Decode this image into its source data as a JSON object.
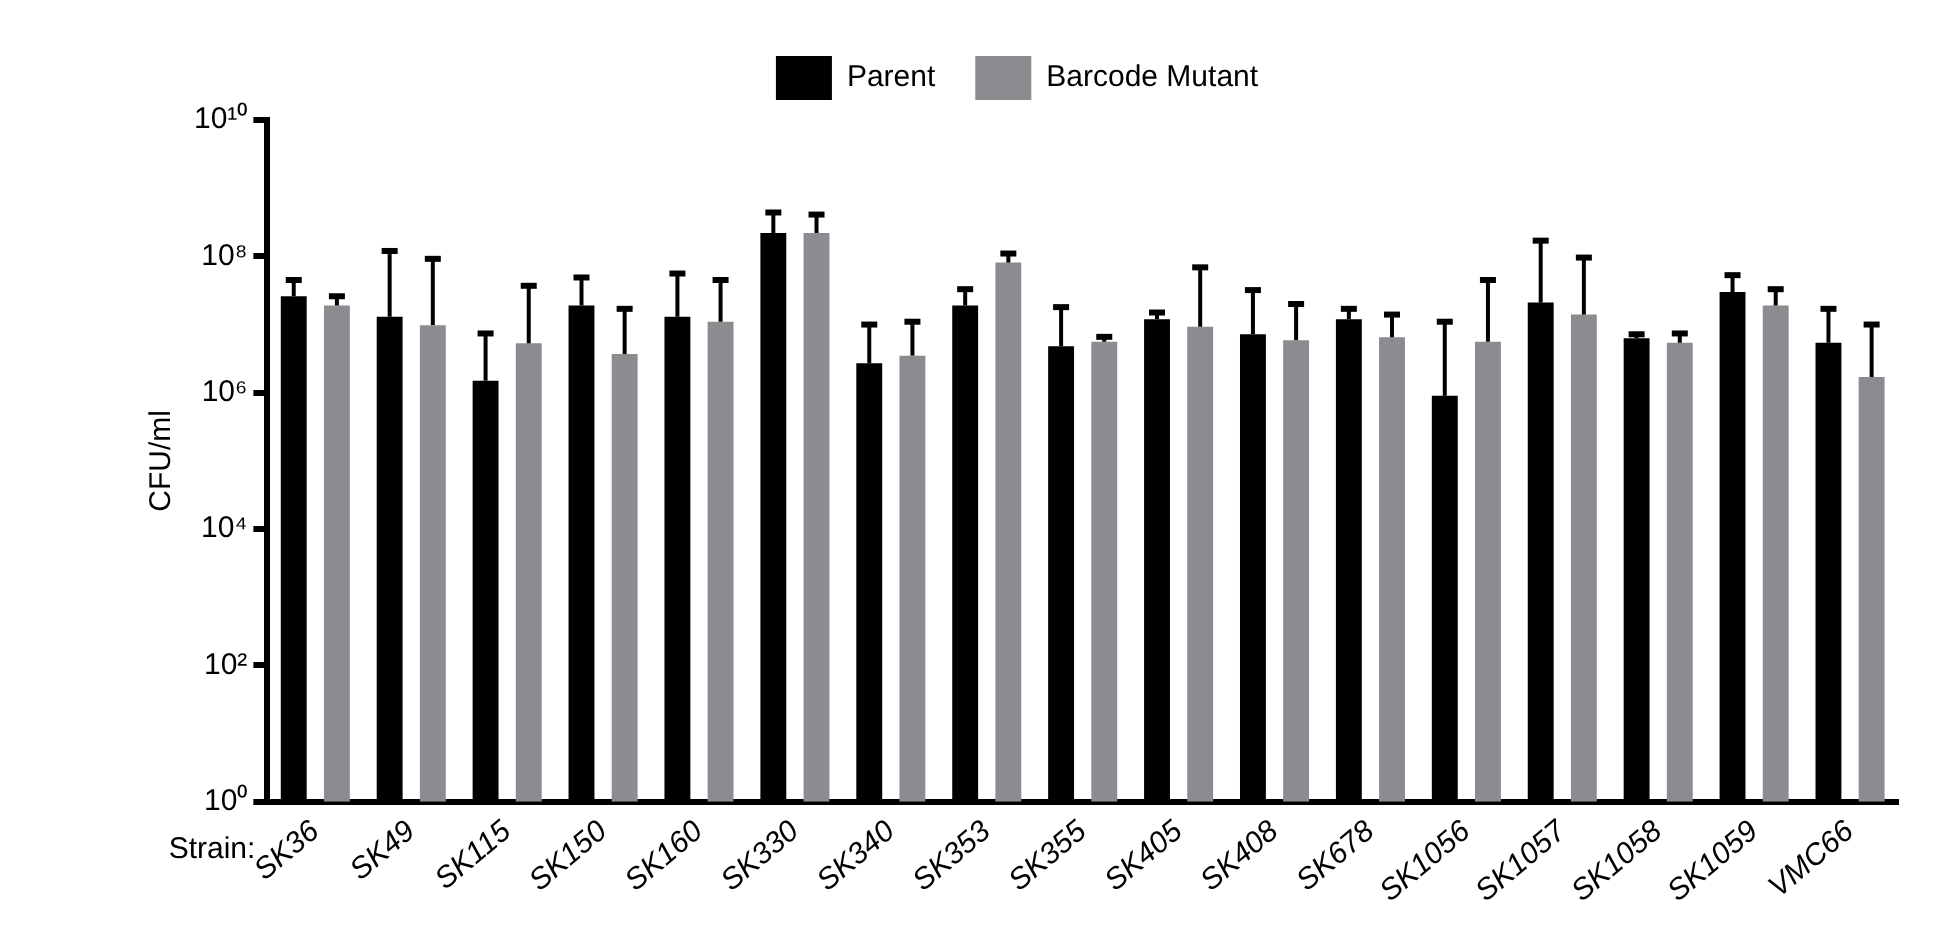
{
  "chart_data": {
    "type": "bar",
    "ylabel": "CFU/ml",
    "xlabel": "Strain:",
    "categories": [
      "SK36",
      "SK49",
      "SK115",
      "SK150",
      "SK160",
      "SK330",
      "SK340",
      "SK353",
      "SK355",
      "SK405",
      "SK408",
      "SK678",
      "SK1056",
      "SK1057",
      "SK1058",
      "SK1059",
      "VMC66"
    ],
    "series": [
      {
        "name": "Parent",
        "color": "#000000",
        "values": [
          26000000.0,
          13000000.0,
          1500000.0,
          19000000.0,
          13000000.0,
          220000000.0,
          2700000.0,
          19000000.0,
          4800000.0,
          12000000.0,
          7200000.0,
          12000000.0,
          900000.0,
          21000000.0,
          6300000.0,
          30000000.0,
          5400000.0
        ],
        "errors": [
          [
            26000000.0,
            45000000.0
          ],
          [
            13000000.0,
            120000000.0
          ],
          [
            1500000.0,
            7400000.0
          ],
          [
            19000000.0,
            49000000.0
          ],
          [
            13000000.0,
            56000000.0
          ],
          [
            220000000.0,
            440000000.0
          ],
          [
            2700000.0,
            10000000.0
          ],
          [
            19000000.0,
            33000000.0
          ],
          [
            4800000.0,
            18000000.0
          ],
          [
            12000000.0,
            15000000.0
          ],
          [
            7200000.0,
            32000000.0
          ],
          [
            12000000.0,
            17000000.0
          ],
          [
            900000.0,
            11000000.0
          ],
          [
            21000000.0,
            170000000.0
          ],
          [
            6300000.0,
            7200000.0
          ],
          [
            30000000.0,
            53000000.0
          ],
          [
            5400000.0,
            17000000.0
          ]
        ]
      },
      {
        "name": "Barcode Mutant",
        "color": "#8c8c90",
        "values": [
          19000000.0,
          9800000.0,
          5300000.0,
          3700000.0,
          11000000.0,
          220000000.0,
          3500000.0,
          81000000.0,
          5600000.0,
          9300000.0,
          5900000.0,
          6500000.0,
          5600000.0,
          14000000.0,
          5400000.0,
          19000000.0,
          1700000.0
        ],
        "errors": [
          [
            19000000.0,
            26000000.0
          ],
          [
            9800000.0,
            92000000.0
          ],
          [
            5300000.0,
            37000000.0
          ],
          [
            3700000.0,
            17000000.0
          ],
          [
            11000000.0,
            45000000.0
          ],
          [
            220000000.0,
            410000000.0
          ],
          [
            3500000.0,
            11000000.0
          ],
          [
            81000000.0,
            110000000.0
          ],
          [
            5600000.0,
            6600000.0
          ],
          [
            9300000.0,
            69000000.0
          ],
          [
            5900000.0,
            20000000.0
          ],
          [
            6500000.0,
            14000000.0
          ],
          [
            5600000.0,
            45000000.0
          ],
          [
            14000000.0,
            96000000.0
          ],
          [
            5400000.0,
            7400000.0
          ],
          [
            19000000.0,
            33000000.0
          ],
          [
            1700000.0,
            10000000.0
          ]
        ]
      }
    ],
    "log": true,
    "ylim": [
      1,
      10000000000.0
    ],
    "yticks": [
      {
        "value": 1,
        "label": "10⁰"
      },
      {
        "value": 100,
        "label": "10²"
      },
      {
        "value": 10000,
        "label": "10⁴"
      },
      {
        "value": 1000000,
        "label": "10⁶"
      },
      {
        "value": 100000000,
        "label": "10⁸"
      },
      {
        "value": 10000000000,
        "label": "10¹⁰"
      }
    ],
    "grid": false,
    "legend": "top"
  }
}
